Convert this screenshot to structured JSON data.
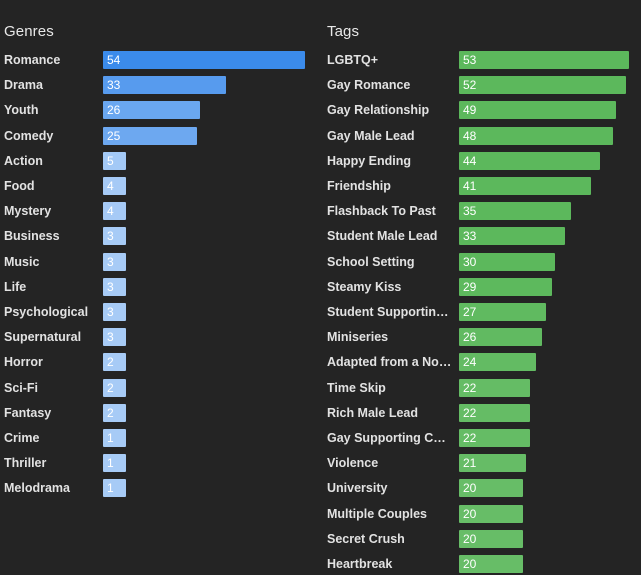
{
  "genres": {
    "title": "Genres",
    "color": "#3b8beb",
    "max": 54,
    "items": [
      {
        "label": "Romance",
        "value": 54
      },
      {
        "label": "Drama",
        "value": 33
      },
      {
        "label": "Youth",
        "value": 26
      },
      {
        "label": "Comedy",
        "value": 25
      },
      {
        "label": "Action",
        "value": 5
      },
      {
        "label": "Food",
        "value": 4
      },
      {
        "label": "Mystery",
        "value": 4
      },
      {
        "label": "Business",
        "value": 3
      },
      {
        "label": "Music",
        "value": 3
      },
      {
        "label": "Life",
        "value": 3
      },
      {
        "label": "Psychological",
        "value": 3
      },
      {
        "label": "Supernatural",
        "value": 3
      },
      {
        "label": "Horror",
        "value": 2
      },
      {
        "label": "Sci-Fi",
        "value": 2
      },
      {
        "label": "Fantasy",
        "value": 2
      },
      {
        "label": "Crime",
        "value": 1
      },
      {
        "label": "Thriller",
        "value": 1
      },
      {
        "label": "Melodrama",
        "value": 1
      }
    ]
  },
  "tags": {
    "title": "Tags",
    "color": "#5cb85c",
    "max": 53,
    "items": [
      {
        "label": "LGBTQ+",
        "value": 53
      },
      {
        "label": "Gay Romance",
        "value": 52
      },
      {
        "label": "Gay Relationship",
        "value": 49
      },
      {
        "label": "Gay Male Lead",
        "value": 48
      },
      {
        "label": "Happy Ending",
        "value": 44
      },
      {
        "label": "Friendship",
        "value": 41
      },
      {
        "label": "Flashback To Past",
        "value": 35
      },
      {
        "label": "Student Male Lead",
        "value": 33
      },
      {
        "label": "School Setting",
        "value": 30
      },
      {
        "label": "Steamy Kiss",
        "value": 29
      },
      {
        "label": "Student Supporting ...",
        "value": 27
      },
      {
        "label": "Miniseries",
        "value": 26
      },
      {
        "label": "Adapted from a Nov...",
        "value": 24
      },
      {
        "label": "Time Skip",
        "value": 22
      },
      {
        "label": "Rich Male Lead",
        "value": 22
      },
      {
        "label": "Gay Supporting Cha...",
        "value": 22
      },
      {
        "label": "Violence",
        "value": 21
      },
      {
        "label": "University",
        "value": 20
      },
      {
        "label": "Multiple Couples",
        "value": 20
      },
      {
        "label": "Secret Crush",
        "value": 20
      },
      {
        "label": "Heartbreak",
        "value": 20
      }
    ]
  },
  "chart_data": [
    {
      "type": "bar",
      "title": "Genres",
      "orientation": "horizontal",
      "categories": [
        "Romance",
        "Drama",
        "Youth",
        "Comedy",
        "Action",
        "Food",
        "Mystery",
        "Business",
        "Music",
        "Life",
        "Psychological",
        "Supernatural",
        "Horror",
        "Sci-Fi",
        "Fantasy",
        "Crime",
        "Thriller",
        "Melodrama"
      ],
      "values": [
        54,
        33,
        26,
        25,
        5,
        4,
        4,
        3,
        3,
        3,
        3,
        3,
        2,
        2,
        2,
        1,
        1,
        1
      ]
    },
    {
      "type": "bar",
      "title": "Tags",
      "orientation": "horizontal",
      "categories": [
        "LGBTQ+",
        "Gay Romance",
        "Gay Relationship",
        "Gay Male Lead",
        "Happy Ending",
        "Friendship",
        "Flashback To Past",
        "Student Male Lead",
        "School Setting",
        "Steamy Kiss",
        "Student Supporting ...",
        "Miniseries",
        "Adapted from a Nov...",
        "Time Skip",
        "Rich Male Lead",
        "Gay Supporting Cha...",
        "Violence",
        "University",
        "Multiple Couples",
        "Secret Crush",
        "Heartbreak"
      ],
      "values": [
        53,
        52,
        49,
        48,
        44,
        41,
        35,
        33,
        30,
        29,
        27,
        26,
        24,
        22,
        22,
        22,
        21,
        20,
        20,
        20,
        20
      ]
    }
  ]
}
